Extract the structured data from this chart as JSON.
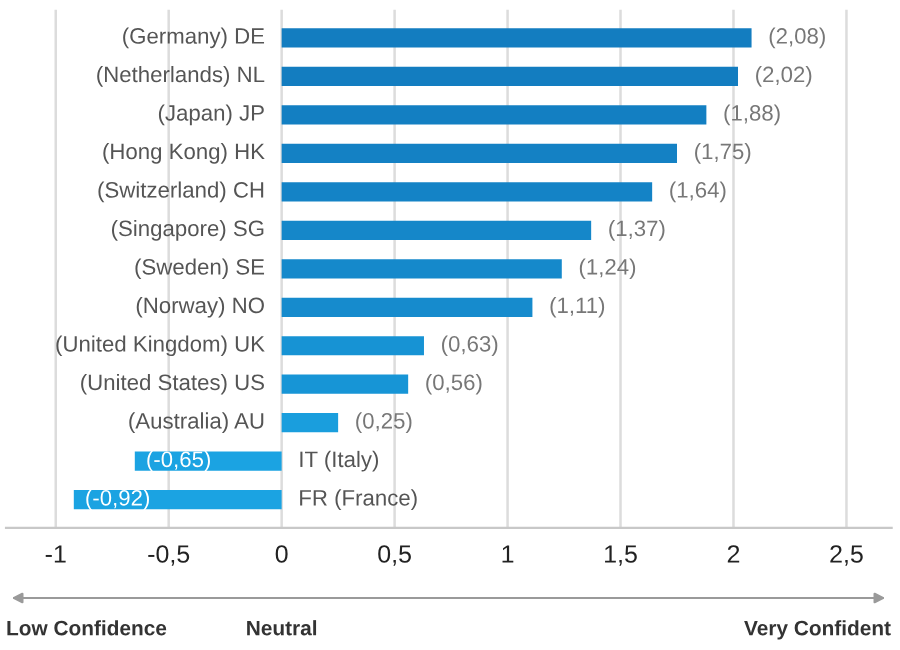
{
  "chart_data": {
    "type": "bar",
    "orientation": "horizontal",
    "categories": [
      "(Germany) DE",
      "(Netherlands) NL",
      "(Japan) JP",
      "(Hong Kong) HK",
      "(Switzerland) CH",
      "(Singapore) SG",
      "(Sweden) SE",
      "(Norway) NO",
      "(United Kingdom) UK",
      "(United States) US",
      "(Australia) AU",
      "IT (Italy)",
      "FR (France)"
    ],
    "values": [
      2.08,
      2.02,
      1.88,
      1.75,
      1.64,
      1.37,
      1.24,
      1.11,
      0.63,
      0.56,
      0.25,
      -0.65,
      -0.92
    ],
    "colors": [
      "#137dc0",
      "#137dc0",
      "#137fc2",
      "#1481c4",
      "#1483c6",
      "#1587c9",
      "#1589cb",
      "#168bcd",
      "#1793d4",
      "#1795d6",
      "#1a9edd",
      "#1ba3e2",
      "#1ba3e2"
    ],
    "value_labels": [
      "(2,08)",
      "(2,02)",
      "(1,88)",
      "(1,75)",
      "(1,64)",
      "(1,37)",
      "(1,24)",
      "(1,11)",
      "(0,63)",
      "(0,56)",
      "(0,25)",
      "(-0,65)",
      "(-0,92)"
    ],
    "xlim": [
      -1.22,
      2.7
    ],
    "xticks": [
      -1,
      {
        "value": -0.5,
        "label": "-0,5"
      },
      0,
      {
        "value": 0.5,
        "label": "0,5"
      },
      1,
      {
        "value": 1.5,
        "label": "1,5"
      },
      2,
      {
        "value": 2.5,
        "label": "2,5"
      }
    ],
    "grid": "x",
    "annotations": [
      "Low Confidence",
      "Neutral",
      "Very Confident"
    ]
  }
}
